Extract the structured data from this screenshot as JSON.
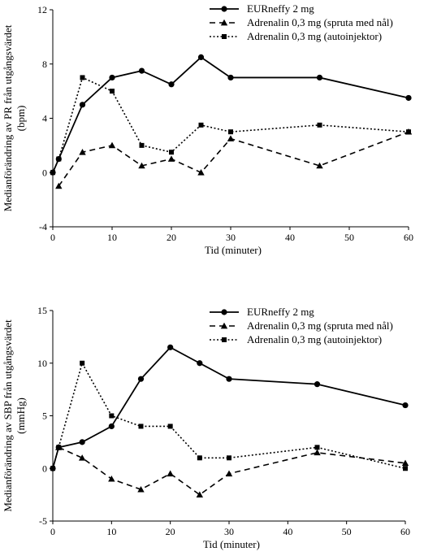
{
  "chart_data": [
    {
      "type": "line",
      "xlabel": "Tid (minuter)",
      "ylabel_line1": "Medianförändring av PR från utgångsvärdet",
      "ylabel_line2": "(bpm)",
      "xlim": [
        0,
        60
      ],
      "ylim": [
        -4,
        12
      ],
      "x_ticks": [
        0,
        10,
        20,
        30,
        40,
        50,
        60
      ],
      "y_ticks": [
        -4,
        0,
        4,
        8,
        12
      ],
      "legend_position": "top-right",
      "series": [
        {
          "name": "EURneffy 2 mg",
          "style": "solid",
          "marker": "circle",
          "x": [
            0,
            1,
            5,
            10,
            15,
            20,
            25,
            30,
            45,
            60
          ],
          "y": [
            0,
            1,
            5,
            7,
            7.5,
            6.5,
            8.5,
            7,
            7,
            5.5
          ]
        },
        {
          "name": "Adrenalin 0,3 mg (spruta med nål)",
          "style": "dashed",
          "marker": "triangle",
          "x": [
            1,
            5,
            10,
            15,
            20,
            25,
            30,
            45,
            60
          ],
          "y": [
            -1,
            1.5,
            2,
            0.5,
            1,
            0,
            2.5,
            0.5,
            3
          ]
        },
        {
          "name": "Adrenalin 0,3 mg (autoinjektor)",
          "style": "dotted",
          "marker": "square",
          "x": [
            0,
            1,
            5,
            10,
            15,
            20,
            25,
            30,
            45,
            60
          ],
          "y": [
            0,
            1,
            7,
            6,
            2,
            1.5,
            3.5,
            3,
            3.5,
            3
          ]
        }
      ]
    },
    {
      "type": "line",
      "xlabel": "Tid (minuter)",
      "ylabel_line1": "Medianförändring av SBP från utgångsvärdet",
      "ylabel_line2": "(mmHg)",
      "xlim": [
        0,
        60
      ],
      "ylim": [
        -5,
        15
      ],
      "x_ticks": [
        0,
        10,
        20,
        30,
        40,
        50,
        60
      ],
      "y_ticks": [
        -5,
        0,
        5,
        10,
        15
      ],
      "legend_position": "top-right",
      "series": [
        {
          "name": "EURneffy 2 mg",
          "style": "solid",
          "marker": "circle",
          "x": [
            0,
            1,
            5,
            10,
            15,
            20,
            25,
            30,
            45,
            60
          ],
          "y": [
            0,
            2,
            2.5,
            4,
            8.5,
            11.5,
            10,
            8.5,
            8,
            6
          ]
        },
        {
          "name": "Adrenalin 0,3 mg (spruta med nål)",
          "style": "dashed",
          "marker": "triangle",
          "x": [
            1,
            5,
            10,
            15,
            20,
            25,
            30,
            45,
            60
          ],
          "y": [
            2,
            1,
            -1,
            -2,
            -0.5,
            -2.5,
            -0.5,
            1.5,
            0.5
          ]
        },
        {
          "name": "Adrenalin 0,3 mg (autoinjektor)",
          "style": "dotted",
          "marker": "square",
          "x": [
            0,
            1,
            5,
            10,
            15,
            20,
            25,
            30,
            45,
            60
          ],
          "y": [
            0,
            2,
            10,
            5,
            4,
            4,
            1,
            1,
            2,
            0
          ]
        }
      ]
    }
  ]
}
